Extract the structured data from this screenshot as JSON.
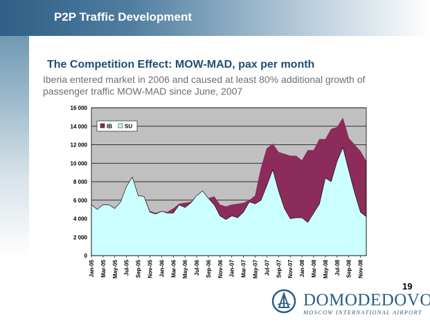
{
  "slide": {
    "title": "P2P Traffic Development",
    "subtitle": "The Competition Effect: MOW-MAD, pax per month",
    "description": "Iberia entered market in 2006 and caused at least 80% additional growth of passenger traffic MOW-MAD since June, 2007",
    "page_number": "19"
  },
  "logo": {
    "name": "DOMODEDOVO",
    "tagline": "MOSCOW INTERNATIONAL AIRPORT"
  },
  "colors": {
    "IB": "#8b2c5a",
    "SU": "#ccffff",
    "plot_background": "#c0c0c0",
    "brand_blue": "#2a5d86"
  },
  "chart_data": {
    "type": "area",
    "stacked": true,
    "ylim": [
      0,
      16000
    ],
    "yticks": [
      0,
      2000,
      4000,
      6000,
      8000,
      10000,
      12000,
      14000,
      16000
    ],
    "ytick_labels": [
      "0",
      "2 000",
      "4 000",
      "6 000",
      "8 000",
      "10 000",
      "12 000",
      "14 000",
      "16 000"
    ],
    "xtick_labels": [
      "Jan-05",
      "Mar-05",
      "May-05",
      "Jul-05",
      "Sep-05",
      "Nov-05",
      "Jan-06",
      "Mar-06",
      "May-06",
      "Jul-06",
      "Sep-06",
      "Nov-06",
      "Jan-07",
      "Mar-07",
      "May-07",
      "Jul-07",
      "Sep-07",
      "Nov-07",
      "Jan-08",
      "Mar-08",
      "May-08",
      "Jul-08",
      "Sep-08",
      "Nov-08"
    ],
    "x": [
      "Jan-05",
      "Feb-05",
      "Mar-05",
      "Apr-05",
      "May-05",
      "Jun-05",
      "Jul-05",
      "Aug-05",
      "Sep-05",
      "Oct-05",
      "Nov-05",
      "Dec-05",
      "Jan-06",
      "Feb-06",
      "Mar-06",
      "Apr-06",
      "May-06",
      "Jun-06",
      "Jul-06",
      "Aug-06",
      "Sep-06",
      "Oct-06",
      "Nov-06",
      "Dec-06",
      "Jan-07",
      "Feb-07",
      "Mar-07",
      "Apr-07",
      "May-07",
      "Jun-07",
      "Jul-07",
      "Aug-07",
      "Sep-07",
      "Oct-07",
      "Nov-07",
      "Dec-07",
      "Jan-08",
      "Feb-08",
      "Mar-08",
      "Apr-08",
      "May-08",
      "Jun-08",
      "Jul-08",
      "Aug-08",
      "Sep-08",
      "Oct-08",
      "Nov-08",
      "Dec-08"
    ],
    "legend_position": "top-left",
    "grid": true,
    "series": [
      {
        "name": "SU",
        "values": [
          5500,
          5000,
          5500,
          5500,
          5100,
          5800,
          7500,
          8500,
          6500,
          6400,
          4700,
          4500,
          4800,
          4600,
          4600,
          5500,
          5200,
          5700,
          6500,
          7000,
          6200,
          5500,
          4300,
          3900,
          4300,
          4100,
          4700,
          5800,
          5600,
          6000,
          7600,
          9300,
          7000,
          5100,
          4000,
          4100,
          4100,
          3600,
          4600,
          5600,
          8400,
          8000,
          10200,
          11700,
          9200,
          6800,
          4700,
          4200
        ]
      },
      {
        "name": "IB",
        "values": [
          0,
          0,
          0,
          0,
          0,
          0,
          0,
          0,
          0,
          0,
          100,
          100,
          0,
          100,
          500,
          100,
          500,
          100,
          0,
          0,
          0,
          900,
          1200,
          1400,
          1200,
          1500,
          1000,
          200,
          900,
          3500,
          4000,
          2800,
          4200,
          5900,
          6800,
          6700,
          6200,
          7800,
          6800,
          7000,
          4200,
          5700,
          3700,
          3200,
          3500,
          5200,
          6600,
          6000
        ]
      }
    ]
  }
}
